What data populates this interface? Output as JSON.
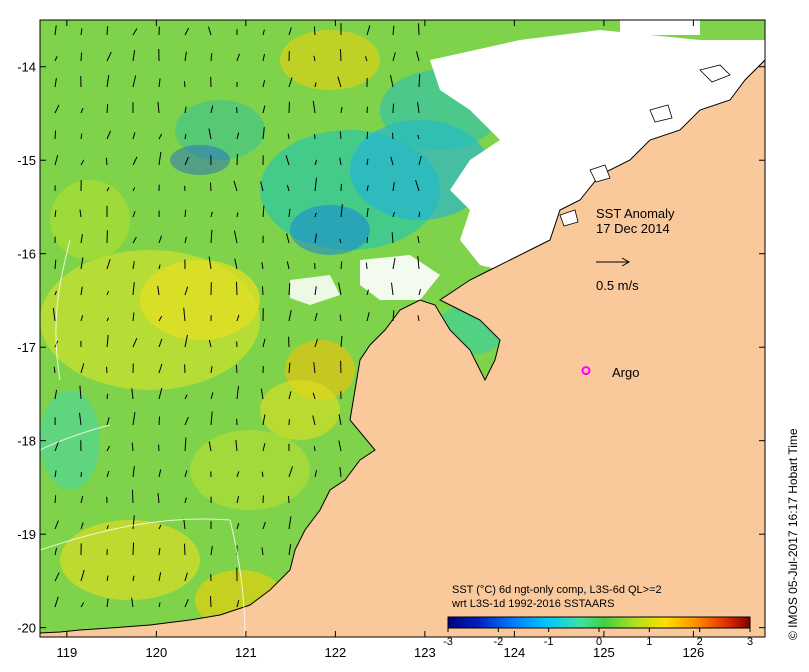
{
  "map": {
    "title_line1": "SST Anomaly",
    "title_line2": "17 Dec 2014",
    "vector_scale_label": "0.5 m/s",
    "argo_label": "Argo",
    "caption_line1": "SST (°C) 6d ngt-only comp, L3S-6d QL>=2",
    "caption_line2": "wrt L3S-1d 1992-2016 SSTAARS",
    "credit": "© IMOS 05-Jul-2017 16:17 Hobart Time",
    "colors": {
      "land": "#f9c89b",
      "coast": "#000000",
      "argo": "#ff00ff",
      "no_data": "#ffffff",
      "ocean_base": "#7fd34a"
    }
  },
  "axes": {
    "x_ticks": [
      "119",
      "120",
      "121",
      "122",
      "123",
      "124",
      "125",
      "126"
    ],
    "y_ticks": [
      "-14",
      "-15",
      "-16",
      "-17",
      "-18",
      "-19",
      "-20"
    ],
    "x_range": [
      118.7,
      126.8
    ],
    "y_range": [
      -20.1,
      -13.5
    ]
  },
  "colorbar": {
    "ticks": [
      "-3",
      "-2",
      "-1",
      "0",
      "1",
      "2",
      "3"
    ],
    "range": [
      -3,
      3
    ],
    "stops": [
      "#000080",
      "#0020c0",
      "#0080ff",
      "#00c8ff",
      "#40e0a0",
      "#40d040",
      "#b0e020",
      "#ffe000",
      "#ff9000",
      "#e03000",
      "#800000"
    ]
  },
  "argo": {
    "lon": 124.8,
    "lat": -17.25
  }
}
